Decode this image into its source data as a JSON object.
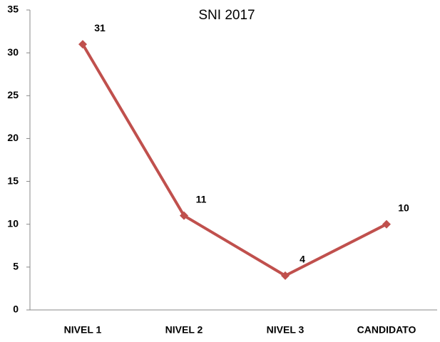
{
  "chart_data": {
    "type": "line",
    "title": "SNI 2017",
    "categories": [
      "NIVEL 1",
      "NIVEL 2",
      "NIVEL 3",
      "CANDIDATO"
    ],
    "values": [
      31,
      11,
      4,
      10
    ],
    "color": "#c0504d",
    "ylim": [
      0,
      35
    ],
    "yticks": [
      0,
      5,
      10,
      15,
      20,
      25,
      30,
      35
    ],
    "grid": false
  }
}
